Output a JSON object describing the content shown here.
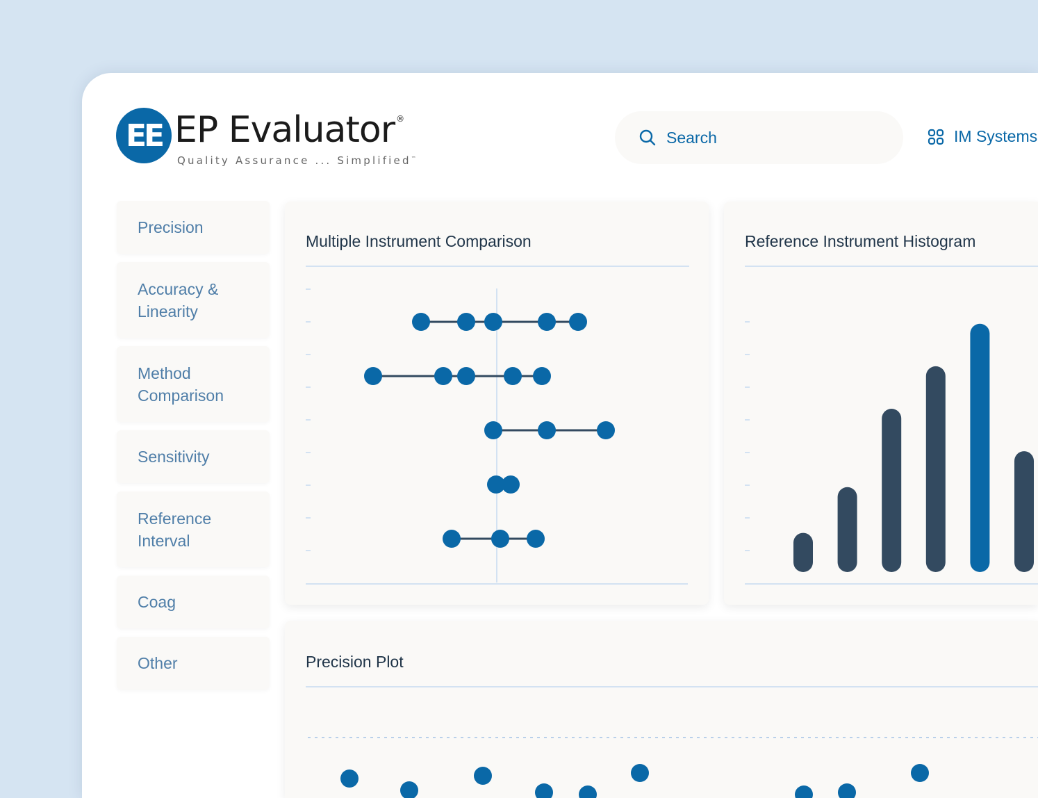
{
  "logo": {
    "mark": "EE",
    "name": "EP Evaluator",
    "registered": "®",
    "tagline": "Quality Assurance ... Simplified",
    "trademark": "™"
  },
  "search": {
    "placeholder": "Search",
    "icon": "search-icon"
  },
  "systems": {
    "label": "IM Systems",
    "icon": "grid-icon"
  },
  "nav": [
    "Precision",
    "Accuracy & Linearity",
    "Method Comparison",
    "Sensitivity",
    "Reference Interval",
    "Coag",
    "Other"
  ],
  "colors": {
    "accent": "#0a68a7",
    "dark_bar": "#334a60",
    "background": "#d5e4f2"
  },
  "cards": {
    "mic_title": "Multiple Instrument Comparison",
    "hist_title": "Reference Instrument Histogram",
    "precision_title": "Precision Plot"
  },
  "chart_data": [
    {
      "type": "scatter",
      "title": "Multiple Instrument Comparison",
      "reference_line": 0,
      "rows": [
        [
          -10.9,
          -4.4,
          -0.5,
          7.2,
          11.7
        ],
        [
          -17.8,
          -7.7,
          -4.4,
          2.3,
          6.5
        ],
        [
          -0.5,
          7.2,
          15.7
        ],
        [
          -0.1,
          2.0
        ],
        [
          -6.5,
          0.5,
          5.6
        ]
      ]
    },
    {
      "type": "bar",
      "title": "Reference Instrument Histogram",
      "values": [
        1.2,
        2.6,
        5.0,
        6.3,
        7.6,
        3.7
      ],
      "highlight_index": 4
    },
    {
      "type": "scatter",
      "title": "Precision Plot",
      "reference_line": 0,
      "values": [
        -5.9,
        -7.6,
        -5.5,
        -7.9,
        -8.2,
        -5.1,
        -8.2,
        -7.9,
        -5.1
      ]
    }
  ]
}
